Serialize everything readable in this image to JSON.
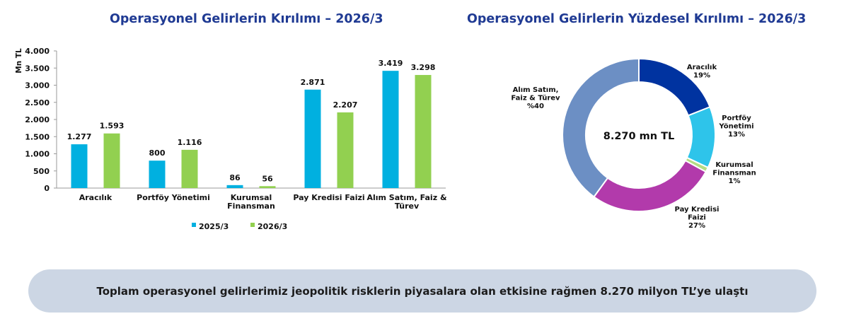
{
  "chart_data": [
    {
      "type": "bar",
      "title": "Operasyonel Gelirlerin Kırılımı – 2026/3",
      "ylabel": "Mn TL",
      "xlabel": "",
      "categories": [
        "Aracılık",
        "Portföy Yönetimi",
        "Kurumsal Finansman",
        "Pay Kredisi Faizi",
        "Alım Satım, Faiz & Türev"
      ],
      "category_label_lines": [
        [
          "Aracılık"
        ],
        [
          "Portföy Yönetimi"
        ],
        [
          "Kurumsal",
          "Finansman"
        ],
        [
          "Pay Kredisi Faizi"
        ],
        [
          "Alım Satım, Faiz &",
          "Türev"
        ]
      ],
      "series": [
        {
          "name": "2025/3",
          "color": "#00b0e0",
          "values": [
            1277,
            800,
            86,
            2871,
            3419
          ],
          "value_labels": [
            "1.277",
            "800",
            "86",
            "2.871",
            "3.419"
          ]
        },
        {
          "name": "2026/3",
          "color": "#92d050",
          "values": [
            1593,
            1116,
            56,
            2207,
            3298
          ],
          "value_labels": [
            "1.593",
            "1.116",
            "56",
            "2.207",
            "3.298"
          ]
        }
      ],
      "ylim": [
        0,
        4000
      ],
      "y_ticks": [
        0,
        500,
        1000,
        1500,
        2000,
        2500,
        3000,
        3500,
        4000
      ],
      "y_tick_labels": [
        "0",
        "500",
        "1.000",
        "1.500",
        "2.000",
        "2.500",
        "3.000",
        "3.500",
        "4.000"
      ],
      "grid": false,
      "legend": "bottom"
    },
    {
      "type": "pie",
      "title": "Operasyonel Gelirlerin Yüzdesel Kırılımı – 2026/3",
      "center_label": "8.270 mn TL",
      "slices": [
        {
          "label": "Aracılık",
          "label_lines": [
            "Aracılık",
            "19%"
          ],
          "value": 19,
          "color": "#0033a0"
        },
        {
          "label": "Portföy Yönetimi",
          "label_lines": [
            "Portföy",
            "Yönetimi",
            "13%"
          ],
          "value": 13,
          "color": "#2ec4ea"
        },
        {
          "label": "Kurumsal Finansman",
          "label_lines": [
            "Kurumsal",
            "Finansman",
            "1%"
          ],
          "value": 1,
          "color": "#b5dc84"
        },
        {
          "label": "Pay Kredisi Faizi",
          "label_lines": [
            "Pay Kredisi",
            "Faizi",
            "27%"
          ],
          "value": 27,
          "color": "#b23aab"
        },
        {
          "label": "Alım Satım, Faiz & Türev",
          "label_lines": [
            "Alım Satım,",
            "Faiz & Türev",
            "%40"
          ],
          "value": 40,
          "color": "#6c8fc4"
        }
      ]
    }
  ],
  "banner": {
    "text": "Toplam operasyonel gelirlerimiz jeopolitik risklerin piyasalara olan etkisine rağmen 8.270 milyon TL’ye ulaştı"
  }
}
